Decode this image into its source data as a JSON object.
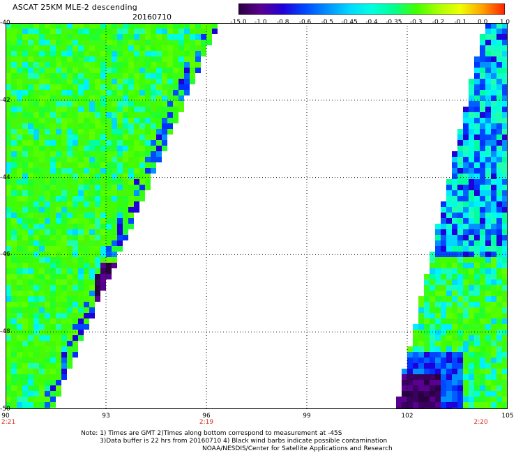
{
  "header": {
    "title": "ASCAT 25KM MLE-2 descending",
    "date": "20160710"
  },
  "colorbar": {
    "labels": [
      "-15.0",
      "-1.0",
      "-0.8",
      "-0.6",
      "-0.5",
      "-0.45",
      "-0.4",
      "-0.35",
      "-0.3",
      "-0.2",
      "-0.1",
      "0.0",
      "1.0"
    ],
    "colors": [
      "#2a0040",
      "#5a0090",
      "#2000d8",
      "#0048ff",
      "#0090ff",
      "#00d8ff",
      "#00ffe0",
      "#00ff90",
      "#40ff00",
      "#a8ff00",
      "#f0ff00",
      "#ffa000",
      "#ff2000"
    ]
  },
  "axes": {
    "lat_labels": [
      "-40",
      "-42",
      "-44",
      "-46",
      "-48",
      "-50"
    ],
    "lon_labels": [
      "90",
      "93",
      "96",
      "99",
      "102",
      "105"
    ],
    "lat_range": [
      -50,
      -40
    ],
    "lon_range": [
      90,
      105
    ]
  },
  "times": [
    {
      "text": "2:21",
      "lon": 90
    },
    {
      "text": "2:19",
      "lon": 96
    },
    {
      "text": "2:20",
      "lon": 104.2
    }
  ],
  "notes": {
    "line1": "Note: 1) Times are GMT 2)Times along bottom correspond to measurement at -45S",
    "line2": "3)Data buffer is 22 hrs from 20160710 4) Black wind barbs indicate possible contamination",
    "line3": "NOAA/NESDIS/Center for Satellite Applications and Research"
  },
  "colors": {
    "grid": "#000000",
    "time_text": "#d42a1e",
    "background": "#ffffff"
  }
}
